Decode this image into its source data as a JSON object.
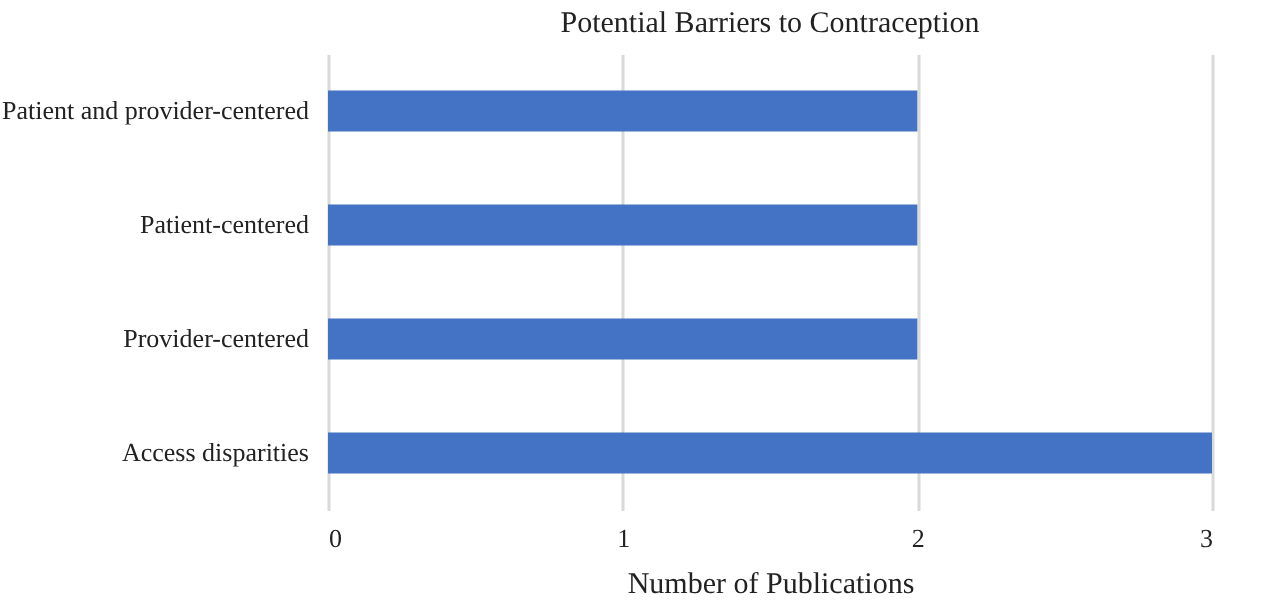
{
  "chart_data": {
    "type": "bar",
    "orientation": "horizontal",
    "title": "Potential Barriers to Contraception",
    "xlabel": "Number of Publications",
    "categories": [
      "Patient and provider-centered",
      "Patient-centered",
      "Provider-centered",
      "Access disparities"
    ],
    "values": [
      2,
      2,
      2,
      3
    ],
    "color": "#4472c4",
    "xlim": [
      0,
      3
    ],
    "xticks": [
      0,
      1,
      2,
      3
    ],
    "grid": "x"
  }
}
